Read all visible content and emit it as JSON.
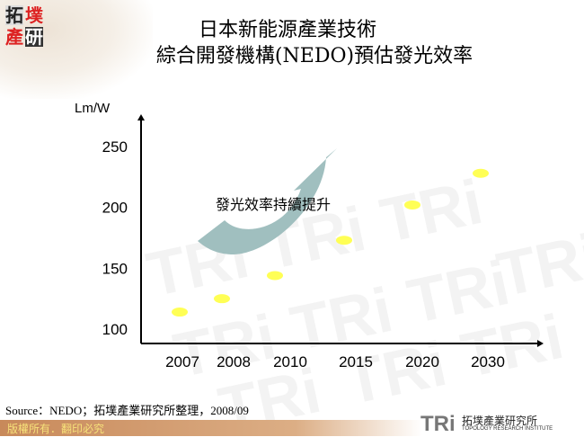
{
  "header": {
    "logo_text": "拓墣產研",
    "title_line1": "日本新能源產業技術",
    "title_line2": "綜合開發機構(NEDO)預估發光效率"
  },
  "chart_data": {
    "type": "scatter",
    "title": "",
    "ylabel": "Lm/W",
    "xlabel": "",
    "categories": [
      "2007",
      "2008",
      "2010",
      "2015",
      "2020",
      "2030"
    ],
    "values": [
      114,
      125,
      144,
      173,
      202,
      228
    ],
    "yticks": [
      "100",
      "150",
      "200",
      "250"
    ],
    "ylim": [
      100,
      250
    ],
    "grid": false,
    "marker_color": "#ffff55",
    "annotation": "發光效率持續提升",
    "arrow_color": "#9bbcbc"
  },
  "footer": {
    "source": "Source：NEDO；拓墣產業研究所整理，2008/09",
    "copyright": "版權所有．翻印必究",
    "org_logo_abbr": "TRi",
    "org_name_cn": "拓墣產業研究所",
    "org_name_en": "TOPOLOGY RESEARCH INSTITUTE"
  }
}
